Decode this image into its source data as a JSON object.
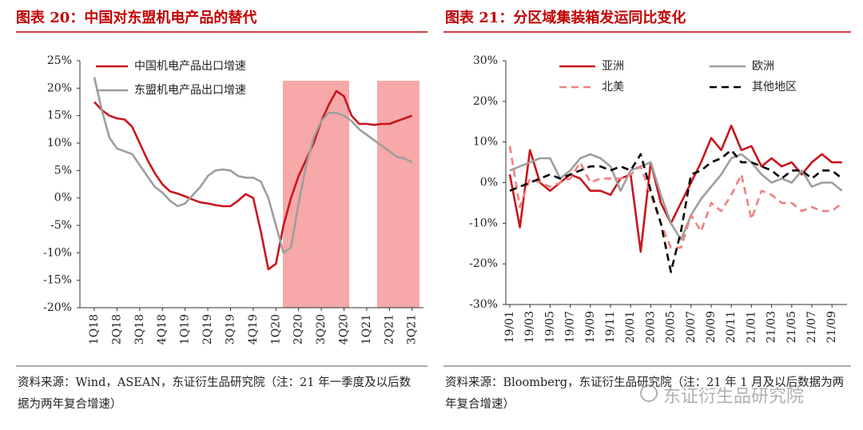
{
  "chart_data": [
    {
      "type": "line",
      "title": "图表 20：中国对东盟机电产品的替代",
      "categories": [
        "1Q18",
        null,
        null,
        "2Q18",
        null,
        null,
        "3Q18",
        null,
        null,
        "4Q18",
        null,
        null,
        "1Q19",
        null,
        null,
        "2Q19",
        null,
        null,
        "3Q19",
        null,
        null,
        "4Q19",
        null,
        null,
        "1Q20",
        null,
        null,
        "2Q20",
        null,
        null,
        "3Q20",
        null,
        null,
        "4Q20",
        null,
        null,
        "1Q21",
        null,
        null,
        "2Q21",
        null,
        null,
        "3Q21"
      ],
      "series": [
        {
          "name": "中国机电产品出口增速",
          "color": "#c8161d",
          "dash": false,
          "values": [
            17.5,
            16,
            15,
            14.5,
            14.3,
            13,
            10,
            7,
            4.5,
            2.5,
            1.2,
            0.8,
            0.3,
            -0.3,
            -0.8,
            -1,
            -1.3,
            -1.5,
            -1.5,
            -0.5,
            0.7,
            0,
            -6,
            -13,
            -12,
            -5,
            0,
            4,
            7,
            10,
            14,
            17,
            19.5,
            18.5,
            15,
            13.5,
            13.5,
            13.3,
            13.5,
            13.5,
            14,
            14.5,
            15
          ]
        },
        {
          "name": "东盟机电产品出口增速",
          "color": "#9e9e9e",
          "dash": false,
          "values": [
            22,
            16,
            11,
            9,
            8.5,
            8,
            6,
            4,
            2,
            1,
            -0.5,
            -1.5,
            -1,
            0.5,
            2,
            4,
            5,
            5.2,
            5,
            4,
            3.7,
            3.7,
            3,
            0,
            -5,
            -10,
            -9,
            -1,
            6,
            11,
            14,
            15.5,
            15.5,
            15,
            14,
            12.5,
            11.5,
            10.5,
            9.5,
            8.5,
            7.5,
            7.2,
            6.5
          ]
        }
      ],
      "ylim": [
        -20,
        25
      ],
      "yticks": [
        {
          "value": 25,
          "label": "25%"
        },
        {
          "value": 20,
          "label": "20%"
        },
        {
          "value": 15,
          "label": "15%"
        },
        {
          "value": 10,
          "label": "10%"
        },
        {
          "value": 5,
          "label": "5%"
        },
        {
          "value": 0,
          "label": "0%"
        },
        {
          "value": -5,
          "label": "-5%"
        },
        {
          "value": -10,
          "label": "-10%"
        },
        {
          "value": -15,
          "label": "-15%"
        },
        {
          "value": -20,
          "label": "-20%"
        }
      ],
      "legend": "upper left"
    },
    {
      "type": "line",
      "title": "图表 21：分区域集装箱发运同比变化",
      "categories": [
        "19/01",
        null,
        "19/03",
        null,
        "19/05",
        null,
        "19/07",
        null,
        "19/09",
        null,
        "19/11",
        null,
        "20/01",
        null,
        "20/03",
        null,
        "20/05",
        null,
        "20/07",
        null,
        "20/09",
        null,
        "20/11",
        null,
        "21/01",
        null,
        "21/03",
        null,
        "21/05",
        null,
        "21/07",
        null,
        "21/09",
        null
      ],
      "series": [
        {
          "name": "亚洲",
          "color": "#c8161d",
          "dash": false,
          "values": [
            2,
            -11,
            8,
            0,
            -2,
            0,
            2,
            1,
            -2,
            -2,
            -3,
            1,
            2,
            -17,
            5,
            -5,
            -10,
            -5,
            0,
            5,
            11,
            8,
            14,
            8,
            9,
            4,
            6,
            4,
            5,
            2,
            5,
            7,
            5,
            5
          ]
        },
        {
          "name": "欧洲",
          "color": "#9e9e9e",
          "dash": false,
          "values": [
            3,
            4,
            5,
            6,
            6,
            1,
            3,
            6,
            7,
            6,
            4,
            -2,
            3,
            4,
            5,
            -3,
            -10,
            -14,
            -8,
            -4,
            -1,
            2,
            6,
            7,
            5,
            2,
            0,
            1,
            0,
            3,
            -1,
            0,
            0,
            -2
          ]
        },
        {
          "name": "北美",
          "color": "#f08080",
          "dash": true,
          "values": [
            9,
            -6,
            1,
            0,
            -1,
            0,
            1,
            5,
            0,
            1,
            1,
            1,
            2,
            4,
            -3,
            -10,
            -16,
            -16,
            -8,
            -12,
            -5,
            -7,
            -3,
            2,
            -9,
            -2,
            -3,
            -5,
            -5,
            -7,
            -6,
            -7,
            -7,
            -5
          ]
        },
        {
          "name": "其他地区",
          "color": "#000000",
          "dash": true,
          "values": [
            -2,
            -1,
            0,
            1,
            2,
            1,
            2,
            3,
            4,
            4,
            3,
            4,
            3,
            7,
            -2,
            -10,
            -22,
            -12,
            2,
            3,
            5,
            6,
            8,
            5,
            5,
            4,
            3,
            1,
            3,
            3,
            1,
            3,
            3,
            1
          ]
        }
      ],
      "ylim": [
        -30,
        30
      ],
      "yticks": [
        {
          "value": 30,
          "label": "30%"
        },
        {
          "value": 20,
          "label": "20%"
        },
        {
          "value": 10,
          "label": "10%"
        },
        {
          "value": 0,
          "label": "0%"
        },
        {
          "value": -10,
          "label": "-10%"
        },
        {
          "value": -20,
          "label": "-20%"
        },
        {
          "value": -30,
          "label": "-30%"
        }
      ],
      "legend": "top"
    }
  ],
  "notes": [
    "资料来源：Wind，ASEAN，东证衍生品研究院（注：21 年一季度及以后数据为两年复合增速）",
    "资料来源：Bloomberg，东证衍生品研究院（注：21 年 1 月及以后数据为两年复合增速）"
  ],
  "watermark": "东证衍生品研究院"
}
